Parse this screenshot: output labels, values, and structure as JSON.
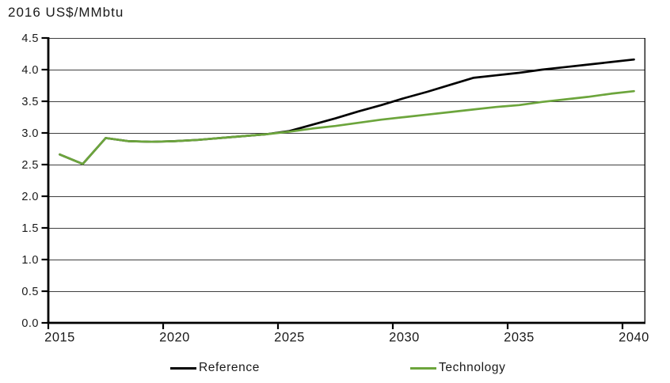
{
  "chart_data": {
    "type": "line",
    "title": "2016 US$/MMbtu",
    "xlabel": "",
    "ylabel": "2016 US$/MMbtu",
    "x": [
      2015,
      2016,
      2017,
      2018,
      2019,
      2020,
      2021,
      2022,
      2023,
      2024,
      2025,
      2026,
      2027,
      2028,
      2029,
      2030,
      2031,
      2032,
      2033,
      2034,
      2035,
      2036,
      2037,
      2038,
      2039,
      2040
    ],
    "series": [
      {
        "name": "Reference",
        "color": "#000000",
        "values": [
          2.66,
          2.51,
          2.92,
          2.87,
          2.86,
          2.87,
          2.89,
          2.92,
          2.95,
          2.98,
          3.03,
          3.13,
          3.23,
          3.34,
          3.44,
          3.55,
          3.65,
          3.76,
          3.87,
          3.91,
          3.95,
          4.0,
          4.04,
          4.08,
          4.12,
          4.16
        ]
      },
      {
        "name": "Technology",
        "color": "#6CA53C",
        "values": [
          2.66,
          2.51,
          2.92,
          2.87,
          2.86,
          2.87,
          2.89,
          2.92,
          2.95,
          2.98,
          3.02,
          3.07,
          3.11,
          3.16,
          3.21,
          3.25,
          3.29,
          3.33,
          3.37,
          3.41,
          3.44,
          3.49,
          3.53,
          3.57,
          3.62,
          3.66
        ]
      }
    ],
    "ylim": [
      0.0,
      4.5
    ],
    "y_tick_labels": [
      "4.5",
      "4.0",
      "3.5",
      "3.0",
      "2.5",
      "2.0",
      "1.5",
      "1.0",
      "0.5",
      "0.0"
    ],
    "x_tick_labels": [
      "2015",
      "2020",
      "2025",
      "2030",
      "2035",
      "2040"
    ],
    "grid": "horizontal-only",
    "legend_position": "bottom"
  },
  "colors": {
    "reference_line": "#000000",
    "technology_line": "#6CA53C",
    "gridline": "#3f3f3f",
    "axis": "#000000",
    "text": "#1a1a1a"
  }
}
